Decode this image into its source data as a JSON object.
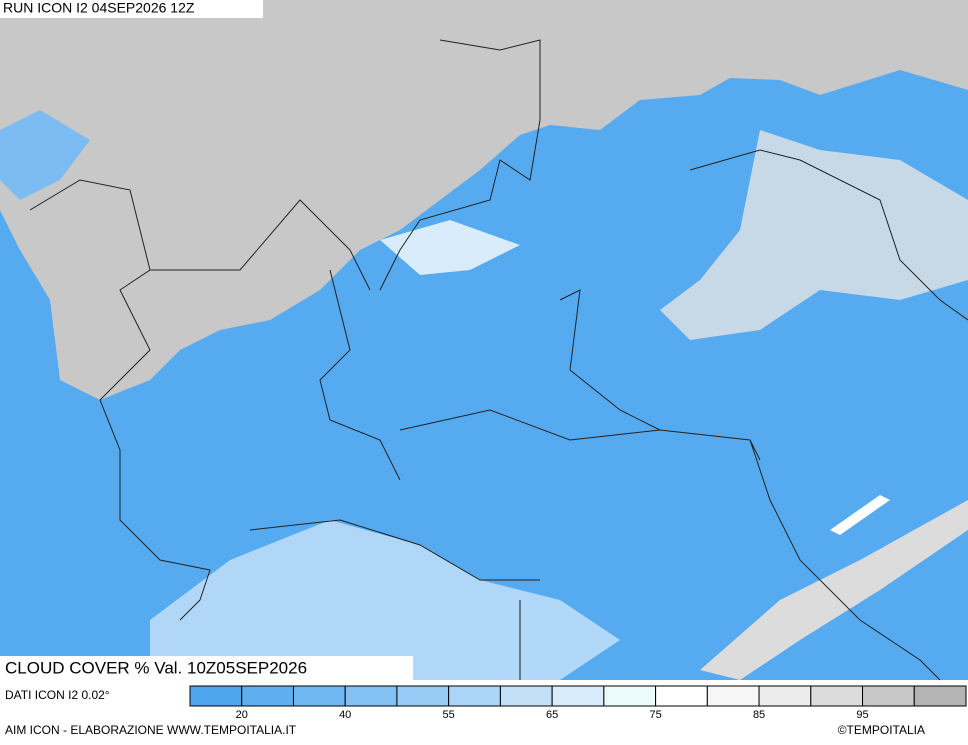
{
  "header": {
    "title": "RUN ICON I2 04SEP2026 12Z"
  },
  "caption": "CLOUD COVER % Val. 10Z05SEP2026",
  "source": "DATI ICON I2 0.02°",
  "legend": {
    "colors": [
      "#4ea6ee",
      "#5eafef",
      "#70b8f1",
      "#82c1f3",
      "#97cbf5",
      "#acd6f7",
      "#c2e1f9",
      "#d8ecfb",
      "#ecfbfd",
      "#ffffff",
      "#f6f6f6",
      "#ececec",
      "#dcdcdc",
      "#c8c8c8",
      "#b4b4b4"
    ],
    "ticks": [
      20,
      40,
      55,
      65,
      75,
      85,
      95
    ]
  },
  "footer": {
    "left": "AIM ICON - ELABORAZIONE WWW.TEMPOITALIA.IT",
    "right": "©TEMPOITALIA"
  }
}
